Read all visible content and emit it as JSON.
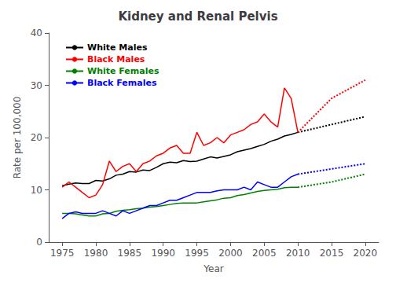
{
  "chart_data": {
    "type": "line",
    "title": "Kidney and Renal Pelvis",
    "xlabel": "Year",
    "ylabel": "Rate per 100,000",
    "xlim": [
      1973,
      2022
    ],
    "ylim": [
      0,
      40
    ],
    "xticks": [
      1975,
      1980,
      1985,
      1990,
      1995,
      2000,
      2005,
      2010,
      2015,
      2020
    ],
    "yticks": [
      0,
      10,
      20,
      30,
      40
    ],
    "grid": false,
    "legend": "upper left",
    "series": [
      {
        "name": "White Males",
        "color": "#000000",
        "line_style": "solid",
        "x": [
          1975,
          1976,
          1977,
          1978,
          1979,
          1980,
          1981,
          1982,
          1983,
          1984,
          1985,
          1986,
          1987,
          1988,
          1989,
          1990,
          1991,
          1992,
          1993,
          1994,
          1995,
          1996,
          1997,
          1998,
          1999,
          2000,
          2001,
          2002,
          2003,
          2004,
          2005,
          2006,
          2007,
          2008,
          2009,
          2010
        ],
        "values": [
          10.8,
          11.1,
          11.3,
          11.2,
          11.2,
          11.8,
          11.7,
          12.1,
          12.8,
          13.0,
          13.5,
          13.4,
          13.8,
          13.7,
          14.3,
          15.0,
          15.3,
          15.2,
          15.6,
          15.4,
          15.5,
          15.9,
          16.3,
          16.1,
          16.4,
          16.7,
          17.3,
          17.6,
          17.9,
          18.3,
          18.7,
          19.3,
          19.7,
          20.3,
          20.6,
          21.0
        ]
      },
      {
        "name": "White Males",
        "color": "#000000",
        "line_style": "dotted",
        "x": [
          2010,
          2015,
          2020
        ],
        "values": [
          21.0,
          22.5,
          24.0
        ]
      },
      {
        "name": "Black Males",
        "color": "#FF0000",
        "line_style": "solid",
        "x": [
          1975,
          1976,
          1977,
          1978,
          1979,
          1980,
          1981,
          1982,
          1983,
          1984,
          1985,
          1986,
          1987,
          1988,
          1989,
          1990,
          1991,
          1992,
          1993,
          1994,
          1995,
          1996,
          1997,
          1998,
          1999,
          2000,
          2001,
          2002,
          2003,
          2004,
          2005,
          2006,
          2007,
          2008,
          2009,
          2010
        ],
        "values": [
          10.5,
          11.5,
          10.5,
          9.5,
          8.5,
          9.0,
          11.0,
          15.5,
          13.5,
          14.5,
          15.0,
          13.5,
          15.0,
          15.5,
          16.5,
          17.0,
          18.0,
          18.5,
          17.0,
          17.0,
          21.0,
          18.5,
          19.0,
          20.0,
          19.0,
          20.5,
          21.0,
          21.5,
          22.5,
          23.0,
          24.5,
          23.0,
          22.0,
          29.5,
          27.5,
          21.0
        ]
      },
      {
        "name": "Black Males",
        "color": "#FF0000",
        "line_style": "dotted",
        "x": [
          2010,
          2015,
          2020
        ],
        "values": [
          21.0,
          27.5,
          31.0
        ]
      },
      {
        "name": "White Females",
        "color": "#008000",
        "line_style": "solid",
        "x": [
          1975,
          1976,
          1977,
          1978,
          1979,
          1980,
          1981,
          1982,
          1983,
          1984,
          1985,
          1986,
          1987,
          1988,
          1989,
          1990,
          1991,
          1992,
          1993,
          1994,
          1995,
          1996,
          1997,
          1998,
          1999,
          2000,
          2001,
          2002,
          2003,
          2004,
          2005,
          2006,
          2007,
          2008,
          2009,
          2010
        ],
        "values": [
          5.5,
          5.5,
          5.4,
          5.2,
          5.0,
          5.0,
          5.4,
          5.5,
          5.9,
          6.1,
          6.2,
          6.4,
          6.5,
          6.7,
          6.8,
          7.0,
          7.2,
          7.4,
          7.5,
          7.5,
          7.5,
          7.7,
          7.9,
          8.1,
          8.4,
          8.5,
          8.9,
          9.1,
          9.4,
          9.7,
          9.9,
          10.0,
          10.1,
          10.4,
          10.5,
          10.5
        ]
      },
      {
        "name": "White Females",
        "color": "#008000",
        "line_style": "dotted",
        "x": [
          2010,
          2015,
          2020
        ],
        "values": [
          10.5,
          11.5,
          13.0
        ]
      },
      {
        "name": "Black Females",
        "color": "#0000FF",
        "line_style": "solid",
        "x": [
          1975,
          1976,
          1977,
          1978,
          1979,
          1980,
          1981,
          1982,
          1983,
          1984,
          1985,
          1986,
          1987,
          1988,
          1989,
          1990,
          1991,
          1992,
          1993,
          1994,
          1995,
          1996,
          1997,
          1998,
          1999,
          2000,
          2001,
          2002,
          2003,
          2004,
          2005,
          2006,
          2007,
          2008,
          2009,
          2010
        ],
        "values": [
          4.5,
          5.5,
          5.8,
          5.5,
          5.5,
          5.5,
          6.0,
          5.5,
          5.0,
          6.0,
          5.5,
          6.0,
          6.5,
          7.0,
          7.0,
          7.5,
          8.0,
          8.0,
          8.5,
          9.0,
          9.5,
          9.5,
          9.5,
          9.8,
          10.0,
          10.0,
          10.0,
          10.5,
          10.0,
          11.5,
          11.0,
          10.5,
          10.5,
          11.5,
          12.5,
          13.0
        ]
      },
      {
        "name": "Black Females",
        "color": "#0000FF",
        "line_style": "dotted",
        "x": [
          2010,
          2015,
          2020
        ],
        "values": [
          13.0,
          14.0,
          15.0
        ]
      }
    ]
  }
}
